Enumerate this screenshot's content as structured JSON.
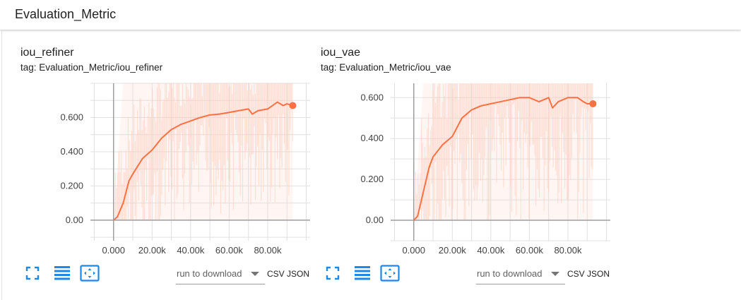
{
  "group": {
    "title": "Evaluation_Metric"
  },
  "colors": {
    "accent": "#ff7043",
    "band": "#ffccbc",
    "icon": "#1e88e5",
    "axis": "#9e9e9e",
    "grid": "#e0e0e0"
  },
  "icons": [
    "fullscreen-icon",
    "list-icon",
    "fit-domain-icon",
    "dropdown-arrow-icon"
  ],
  "cards": [
    {
      "title": "iou_refiner",
      "tag": "tag: Evaluation_Metric/iou_refiner",
      "download_label": "run to download",
      "csv_label": "CSV",
      "json_label": "JSON"
    },
    {
      "title": "iou_vae",
      "tag": "tag: Evaluation_Metric/iou_vae",
      "download_label": "run to download",
      "csv_label": "CSV",
      "json_label": "JSON"
    }
  ],
  "chart_data": [
    {
      "type": "line",
      "title": "iou_refiner",
      "xlim": [
        -12000,
        102000
      ],
      "ylim": [
        -0.12,
        0.8
      ],
      "x_ticks": [
        0,
        20000,
        40000,
        60000,
        80000
      ],
      "x_tick_labels": [
        "0.000",
        "20.00k",
        "40.00k",
        "60.00k",
        "80.00k"
      ],
      "y_ticks": [
        0,
        0.2,
        0.4,
        0.6
      ],
      "y_tick_labels": [
        "0.00",
        "0.200",
        "0.400",
        "0.600"
      ],
      "grid": true,
      "series": [
        {
          "x": [
            0,
            2000,
            5000,
            8000,
            10000,
            15000,
            20000,
            25000,
            30000,
            35000,
            40000,
            45000,
            50000,
            55000,
            60000,
            65000,
            70000,
            72000,
            75000,
            80000,
            85000,
            88000,
            90000,
            93000
          ],
          "y": [
            0.0,
            0.02,
            0.1,
            0.23,
            0.27,
            0.36,
            0.41,
            0.48,
            0.53,
            0.56,
            0.58,
            0.6,
            0.615,
            0.62,
            0.63,
            0.64,
            0.65,
            0.62,
            0.64,
            0.65,
            0.69,
            0.67,
            0.68,
            0.67
          ]
        }
      ]
    },
    {
      "type": "line",
      "title": "iou_vae",
      "xlim": [
        -12000,
        102000
      ],
      "ylim": [
        -0.1,
        0.67
      ],
      "x_ticks": [
        0,
        20000,
        40000,
        60000,
        80000
      ],
      "x_tick_labels": [
        "0.000",
        "20.00k",
        "40.00k",
        "60.00k",
        "80.00k"
      ],
      "y_ticks": [
        0,
        0.2,
        0.4,
        0.6
      ],
      "y_tick_labels": [
        "0.00",
        "0.200",
        "0.400",
        "0.600"
      ],
      "grid": true,
      "series": [
        {
          "x": [
            0,
            2000,
            5000,
            8000,
            10000,
            15000,
            20000,
            25000,
            30000,
            35000,
            40000,
            45000,
            50000,
            55000,
            60000,
            65000,
            70000,
            72000,
            75000,
            80000,
            85000,
            88000,
            90000,
            93000
          ],
          "y": [
            0.0,
            0.02,
            0.14,
            0.26,
            0.31,
            0.37,
            0.41,
            0.5,
            0.54,
            0.56,
            0.57,
            0.58,
            0.59,
            0.6,
            0.6,
            0.58,
            0.6,
            0.55,
            0.58,
            0.6,
            0.6,
            0.58,
            0.57,
            0.57
          ]
        }
      ]
    }
  ]
}
